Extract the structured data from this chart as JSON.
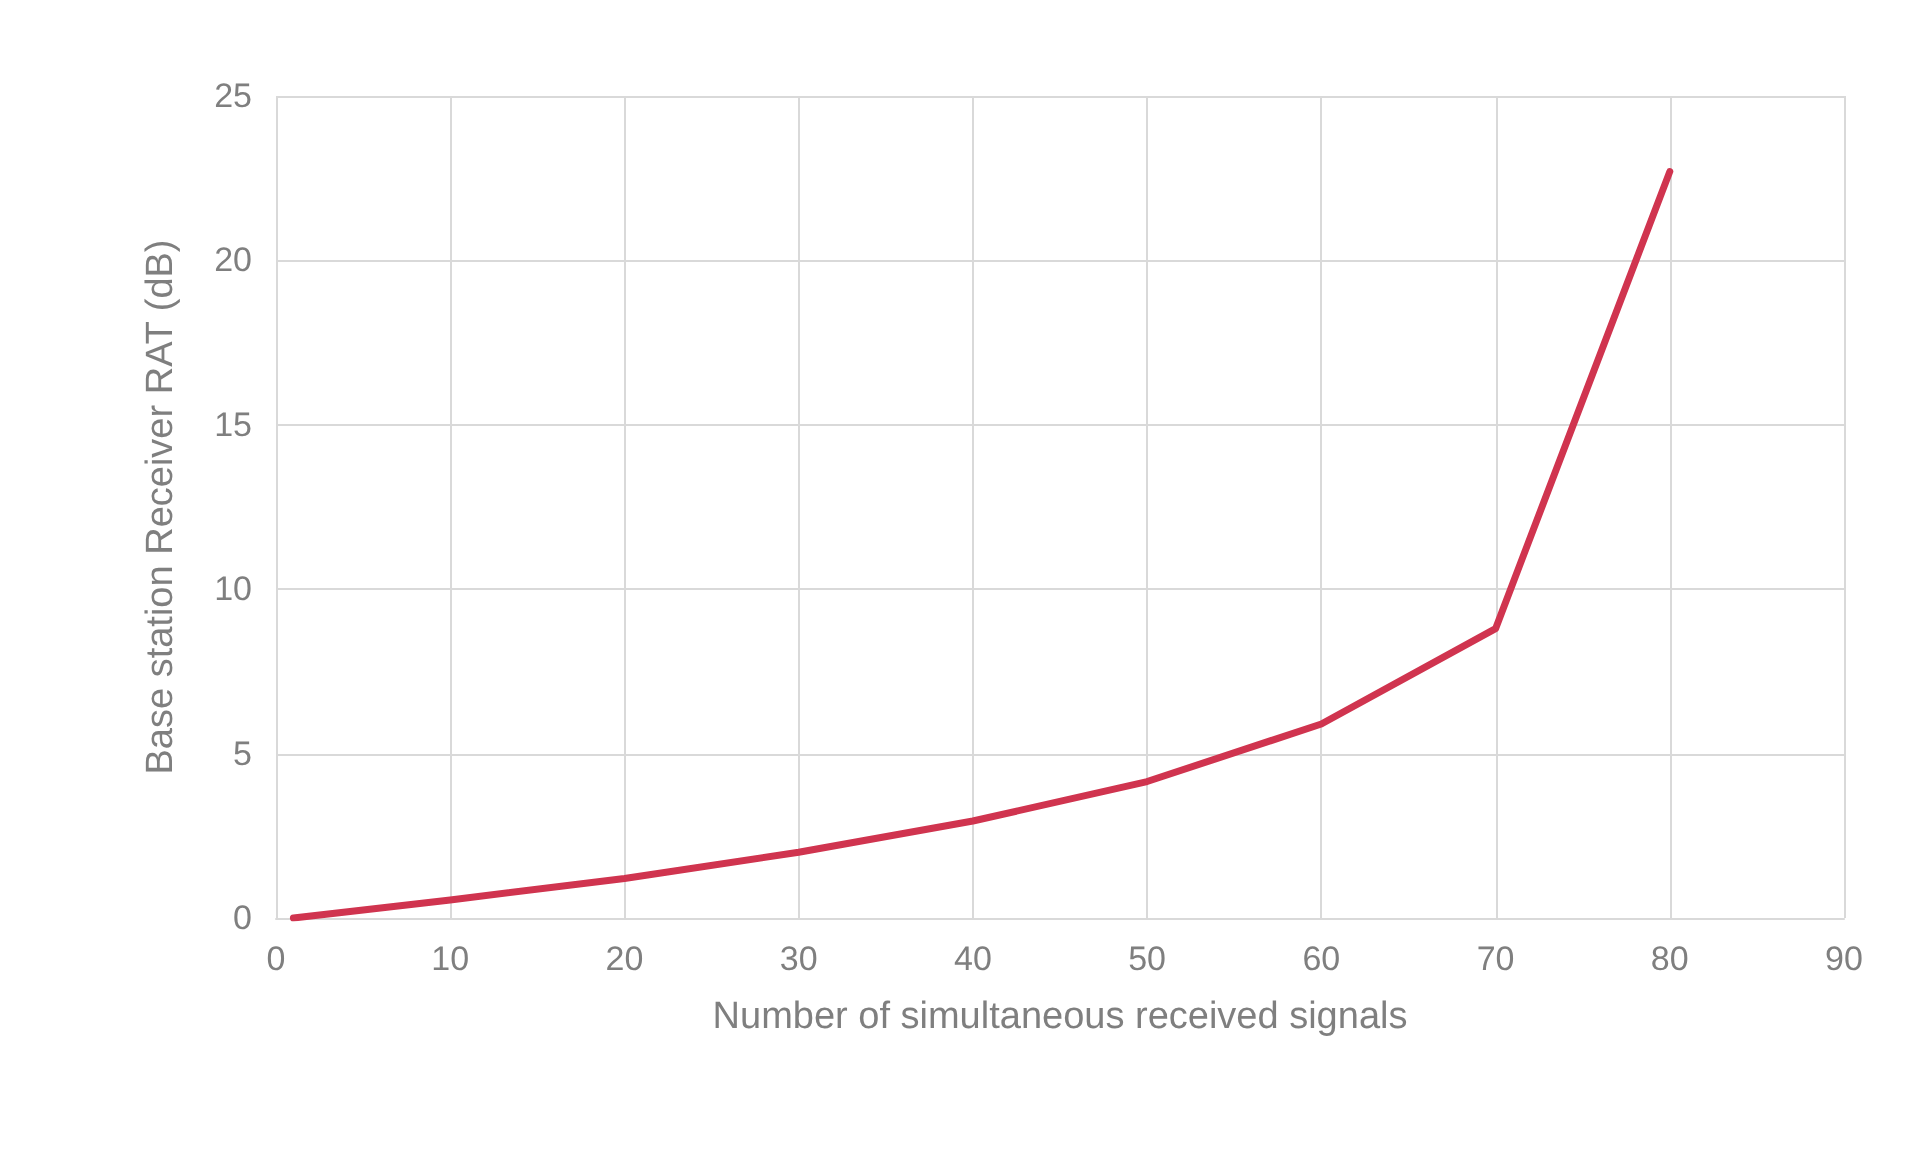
{
  "chart_data": {
    "type": "line",
    "xlabel": "Number of simultaneous received signals",
    "ylabel": "Base station Receiver RAT (dB)",
    "x": [
      1,
      10,
      20,
      30,
      40,
      50,
      60,
      70,
      80
    ],
    "series": [
      {
        "color": "#d0344f",
        "values": [
          0,
          0.55,
          1.2,
          2.0,
          2.95,
          4.15,
          5.9,
          8.8,
          22.7
        ]
      }
    ],
    "xlim": [
      0,
      90
    ],
    "xticks": [
      0,
      10,
      20,
      30,
      40,
      50,
      60,
      70,
      80,
      90
    ],
    "ylim": [
      0,
      25
    ],
    "yticks": [
      0,
      5,
      10,
      15,
      20,
      25
    ],
    "grid": true,
    "marker": "none",
    "line_style": "solid"
  }
}
